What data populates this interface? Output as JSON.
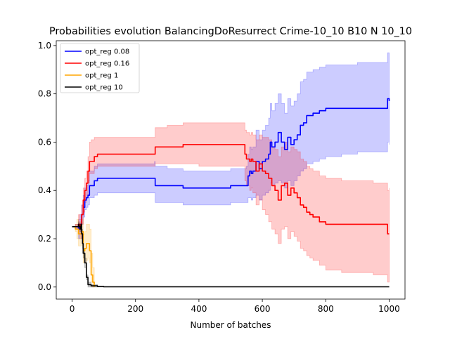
{
  "chart_data": {
    "type": "line",
    "title": "Probabilities evolution BalancingDoResurrect Crime-10_10 B10 N 10_10",
    "xlabel": "Number of batches",
    "ylabel": "",
    "xlim": [
      -50,
      1050
    ],
    "ylim": [
      -0.05,
      1.02
    ],
    "xticks": [
      0,
      200,
      400,
      600,
      800,
      1000
    ],
    "yticks": [
      0.0,
      0.2,
      0.4,
      0.6,
      0.8,
      1.0
    ],
    "xtick_labels": [
      "0",
      "200",
      "400",
      "600",
      "800",
      "1000"
    ],
    "ytick_labels": [
      "0.0",
      "0.2",
      "0.4",
      "0.6",
      "0.8",
      "1.0"
    ],
    "grid": false,
    "legend_position": "top-left",
    "series": [
      {
        "name": "opt_reg 0.08",
        "color": "#0000ff",
        "x": [
          0,
          10,
          20,
          25,
          30,
          35,
          40,
          45,
          50,
          55,
          60,
          70,
          80,
          100,
          150,
          200,
          260,
          262,
          300,
          350,
          400,
          420,
          450,
          500,
          550,
          555,
          560,
          565,
          570,
          580,
          590,
          600,
          610,
          620,
          625,
          630,
          640,
          650,
          660,
          670,
          680,
          690,
          700,
          710,
          720,
          730,
          740,
          760,
          780,
          800,
          850,
          900,
          950,
          995,
          1000
        ],
        "y": [
          0.25,
          0.25,
          0.24,
          0.26,
          0.3,
          0.33,
          0.36,
          0.37,
          0.38,
          0.42,
          0.42,
          0.44,
          0.45,
          0.45,
          0.45,
          0.45,
          0.45,
          0.42,
          0.42,
          0.41,
          0.41,
          0.41,
          0.41,
          0.42,
          0.42,
          0.46,
          0.48,
          0.47,
          0.48,
          0.52,
          0.49,
          0.52,
          0.53,
          0.55,
          0.6,
          0.58,
          0.6,
          0.64,
          0.6,
          0.57,
          0.62,
          0.59,
          0.61,
          0.63,
          0.67,
          0.68,
          0.71,
          0.72,
          0.73,
          0.74,
          0.74,
          0.74,
          0.74,
          0.78,
          0.77
        ],
        "lower": [
          0.25,
          0.24,
          0.2,
          0.22,
          0.26,
          0.29,
          0.32,
          0.33,
          0.34,
          0.37,
          0.37,
          0.38,
          0.39,
          0.39,
          0.39,
          0.39,
          0.39,
          0.35,
          0.35,
          0.34,
          0.34,
          0.34,
          0.34,
          0.35,
          0.35,
          0.37,
          0.37,
          0.36,
          0.37,
          0.38,
          0.36,
          0.38,
          0.39,
          0.4,
          0.43,
          0.42,
          0.43,
          0.44,
          0.43,
          0.41,
          0.44,
          0.42,
          0.44,
          0.46,
          0.48,
          0.49,
          0.51,
          0.52,
          0.53,
          0.54,
          0.55,
          0.56,
          0.56,
          0.6,
          0.59
        ],
        "upper": [
          0.25,
          0.26,
          0.28,
          0.3,
          0.34,
          0.38,
          0.41,
          0.42,
          0.44,
          0.48,
          0.48,
          0.5,
          0.51,
          0.51,
          0.51,
          0.51,
          0.52,
          0.5,
          0.49,
          0.48,
          0.48,
          0.48,
          0.48,
          0.49,
          0.5,
          0.55,
          0.58,
          0.57,
          0.58,
          0.65,
          0.61,
          0.65,
          0.67,
          0.7,
          0.76,
          0.73,
          0.76,
          0.8,
          0.76,
          0.72,
          0.78,
          0.75,
          0.77,
          0.8,
          0.85,
          0.86,
          0.89,
          0.9,
          0.91,
          0.92,
          0.92,
          0.93,
          0.93,
          0.97,
          0.96
        ]
      },
      {
        "name": "opt_reg 0.16",
        "color": "#ff0000",
        "x": [
          0,
          10,
          20,
          25,
          30,
          35,
          40,
          45,
          50,
          55,
          60,
          70,
          80,
          100,
          150,
          200,
          250,
          260,
          262,
          300,
          350,
          400,
          450,
          500,
          540,
          545,
          550,
          560,
          565,
          570,
          580,
          590,
          600,
          610,
          620,
          630,
          640,
          650,
          660,
          670,
          680,
          690,
          700,
          710,
          720,
          730,
          740,
          750,
          760,
          780,
          800,
          850,
          900,
          950,
          990,
          995,
          1000
        ],
        "y": [
          0.25,
          0.25,
          0.26,
          0.24,
          0.3,
          0.36,
          0.4,
          0.43,
          0.48,
          0.52,
          0.52,
          0.54,
          0.55,
          0.55,
          0.55,
          0.55,
          0.55,
          0.55,
          0.58,
          0.58,
          0.59,
          0.59,
          0.59,
          0.59,
          0.59,
          0.55,
          0.53,
          0.52,
          0.53,
          0.52,
          0.48,
          0.51,
          0.48,
          0.47,
          0.45,
          0.42,
          0.4,
          0.36,
          0.42,
          0.43,
          0.38,
          0.41,
          0.39,
          0.37,
          0.34,
          0.33,
          0.31,
          0.3,
          0.29,
          0.27,
          0.26,
          0.26,
          0.26,
          0.26,
          0.26,
          0.22,
          0.22
        ],
        "lower": [
          0.25,
          0.24,
          0.22,
          0.2,
          0.26,
          0.31,
          0.35,
          0.38,
          0.43,
          0.47,
          0.47,
          0.49,
          0.5,
          0.5,
          0.5,
          0.5,
          0.5,
          0.5,
          0.51,
          0.51,
          0.51,
          0.5,
          0.5,
          0.5,
          0.5,
          0.44,
          0.42,
          0.4,
          0.41,
          0.39,
          0.34,
          0.36,
          0.32,
          0.3,
          0.27,
          0.24,
          0.22,
          0.18,
          0.24,
          0.25,
          0.2,
          0.23,
          0.21,
          0.19,
          0.16,
          0.15,
          0.13,
          0.12,
          0.11,
          0.09,
          0.07,
          0.06,
          0.06,
          0.05,
          0.05,
          0.02,
          0.03
        ],
        "upper": [
          0.25,
          0.26,
          0.3,
          0.28,
          0.34,
          0.41,
          0.45,
          0.48,
          0.54,
          0.6,
          0.61,
          0.62,
          0.62,
          0.62,
          0.62,
          0.62,
          0.62,
          0.62,
          0.66,
          0.67,
          0.68,
          0.68,
          0.68,
          0.68,
          0.68,
          0.65,
          0.64,
          0.63,
          0.64,
          0.63,
          0.61,
          0.63,
          0.62,
          0.62,
          0.61,
          0.58,
          0.57,
          0.54,
          0.58,
          0.6,
          0.56,
          0.58,
          0.57,
          0.56,
          0.53,
          0.52,
          0.5,
          0.49,
          0.48,
          0.46,
          0.45,
          0.44,
          0.44,
          0.43,
          0.43,
          0.4,
          0.41
        ]
      },
      {
        "name": "opt_reg 1",
        "color": "#ffa500",
        "x": [
          0,
          10,
          15,
          20,
          25,
          30,
          35,
          40,
          45,
          50,
          55,
          60,
          65,
          70
        ],
        "y": [
          0.25,
          0.24,
          0.24,
          0.22,
          0.22,
          0.23,
          0.15,
          0.16,
          0.18,
          0.18,
          0.15,
          0.05,
          0.02,
          0.0
        ],
        "lower": [
          0.25,
          0.23,
          0.2,
          0.17,
          0.17,
          0.17,
          0.1,
          0.1,
          0.11,
          0.12,
          0.1,
          0.02,
          0.0,
          0.0
        ],
        "upper": [
          0.25,
          0.26,
          0.28,
          0.27,
          0.27,
          0.28,
          0.22,
          0.23,
          0.26,
          0.26,
          0.24,
          0.14,
          0.08,
          0.02
        ]
      },
      {
        "name": "opt_reg 10",
        "color": "#000000",
        "x": [
          0,
          10,
          15,
          20,
          22,
          25,
          28,
          30,
          33,
          35,
          40,
          45,
          50,
          60,
          80,
          100,
          200,
          400,
          600,
          800,
          1000
        ],
        "y": [
          0.25,
          0.25,
          0.25,
          0.26,
          0.25,
          0.24,
          0.26,
          0.22,
          0.18,
          0.14,
          0.1,
          0.04,
          0.01,
          0.005,
          0.002,
          0.001,
          0.001,
          0.001,
          0.001,
          0.001,
          0.001
        ],
        "lower": [
          0.25,
          0.25,
          0.25,
          0.25,
          0.24,
          0.23,
          0.24,
          0.2,
          0.16,
          0.12,
          0.08,
          0.03,
          0.0,
          0.0,
          0.0,
          0.0,
          0.0,
          0.0,
          0.0,
          0.0,
          0.0
        ],
        "upper": [
          0.25,
          0.25,
          0.25,
          0.27,
          0.26,
          0.25,
          0.27,
          0.24,
          0.2,
          0.16,
          0.12,
          0.05,
          0.02,
          0.01,
          0.003,
          0.002,
          0.002,
          0.002,
          0.002,
          0.002,
          0.002
        ]
      }
    ]
  }
}
